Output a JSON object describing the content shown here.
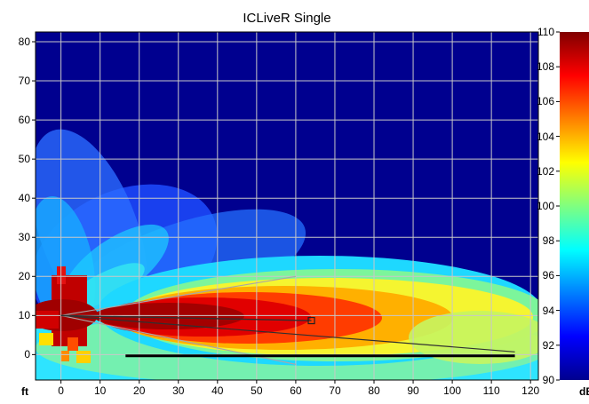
{
  "chart_data": {
    "type": "heatmap",
    "title": "ICLiveR Single",
    "x_unit_label": "ft",
    "x_ticks": [
      0,
      10,
      20,
      30,
      40,
      50,
      60,
      70,
      80,
      90,
      100,
      110,
      120
    ],
    "xlim": [
      -6.5,
      122
    ],
    "y_ticks": [
      0,
      10,
      20,
      30,
      40,
      50,
      60,
      70,
      80
    ],
    "ylim": [
      -6.5,
      82.5
    ],
    "colorbar": {
      "unit_label": "dB",
      "ticks": [
        90,
        92,
        94,
        96,
        98,
        100,
        102,
        104,
        106,
        108,
        110
      ],
      "range": [
        90,
        110
      ]
    },
    "grid": true,
    "source": {
      "x": 0,
      "y": 10
    },
    "target_marker": {
      "x": 64,
      "y": 8.7
    },
    "aim_line": {
      "from": [
        0,
        10
      ],
      "to": [
        64,
        8.7
      ]
    },
    "coverage_edges": [
      {
        "from": [
          0,
          10
        ],
        "to": [
          60,
          20
        ]
      },
      {
        "from": [
          0,
          10
        ],
        "to": [
          60,
          -2.5
        ]
      }
    ],
    "reference_line": {
      "from": [
        0,
        10
      ],
      "to": [
        116,
        0.7
      ]
    },
    "audience_plane": {
      "from": [
        16.5,
        -0.3
      ],
      "to": [
        116,
        -0.3
      ]
    },
    "colors": {
      "grid": "#c8c8c8",
      "aim_line": "#303030",
      "coverage_edge": "#a8a8a8",
      "audience_plane": "#000000"
    }
  }
}
